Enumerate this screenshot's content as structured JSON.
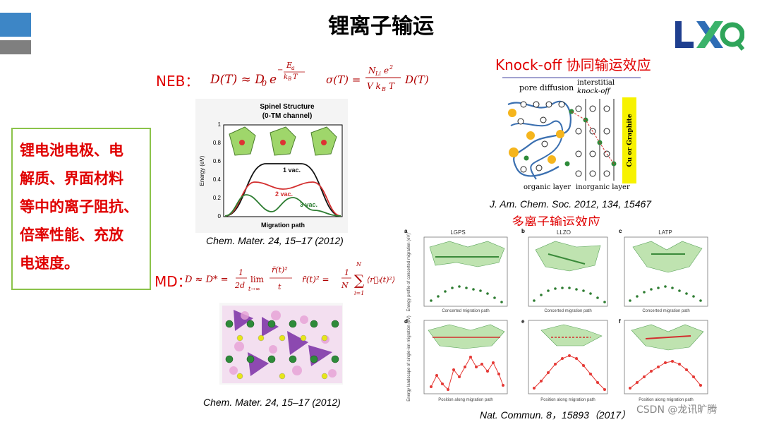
{
  "slide": {
    "title": "锂离子输运",
    "logo_text": "LXQ",
    "colors": {
      "accent_red": "#e00000",
      "box_border": "#8bc34a",
      "bar_blue": "#3d86c6",
      "bar_gray": "#7f7f7f"
    }
  },
  "left_box": {
    "lines": [
      "锂电池电极、电",
      "解质、界面材料",
      "等中的离子阻抗、",
      "倍率性能、充放",
      "电速度。"
    ]
  },
  "neb": {
    "label": "NEB：",
    "formula1": "D(T) ≈ D₀ e^(−Eₐ/k_BT)",
    "formula2": "σ(T) = N_Li e² / (V k_B T) · D(T)",
    "figure": {
      "title_line1": "Spinel Structure",
      "title_line2": "(0-TM channel)",
      "ylabel": "Energy (eV)",
      "xlabel": "Migration path",
      "yticks": [
        "0",
        "0.2",
        "0.4",
        "0.6",
        "0.8",
        "1"
      ],
      "legend": [
        "1 vac.",
        "2 vac.",
        "3 vac."
      ]
    },
    "caption": "Chem. Mater. 24, 15–17 (2012)"
  },
  "md": {
    "label": "MD：",
    "formula": "D ≈ D* = 1/(2d) lim_{t→∞} r̄(t)²/t ,  r̄(t)² = 1/N Σ_{i=1}^{N} ⟨r_i(t)²⟩",
    "caption": "Chem. Mater. 24, 15–17 (2012)"
  },
  "knockoff": {
    "title": "Knock-off 协同输运效应",
    "label_pore": "pore diffusion",
    "label_interstitial": "interstitial",
    "label_knockoff": "knock-off",
    "label_organic": "organic layer",
    "label_inorganic": "inorganic layer",
    "label_side": "Cu or Graphite",
    "caption": "J. Am. Chem. Soc. 2012, 134, 15467"
  },
  "multi": {
    "title": "多离子输运效应",
    "panels": [
      {
        "letter": "a",
        "name": "LGPS",
        "xlabel": "Concerted migration path"
      },
      {
        "letter": "b",
        "name": "LLZO",
        "xlabel": "Concerted migration path"
      },
      {
        "letter": "c",
        "name": "LATP",
        "xlabel": "Concerted migration path"
      },
      {
        "letter": "d",
        "name": "",
        "xlabel": "Position along migration path"
      },
      {
        "letter": "e",
        "name": "",
        "xlabel": "Position along migration path"
      },
      {
        "letter": "f",
        "name": "",
        "xlabel": "Position along migration path"
      }
    ],
    "ylabel_top": "Energy profile of concerted migration (eV)",
    "ylabel_bottom": "Energy landscape of single-ion migration (eV)",
    "caption": "Nat. Commun. 8，15893（2017）"
  },
  "watermark": "CSDN @龙讯旷腾"
}
